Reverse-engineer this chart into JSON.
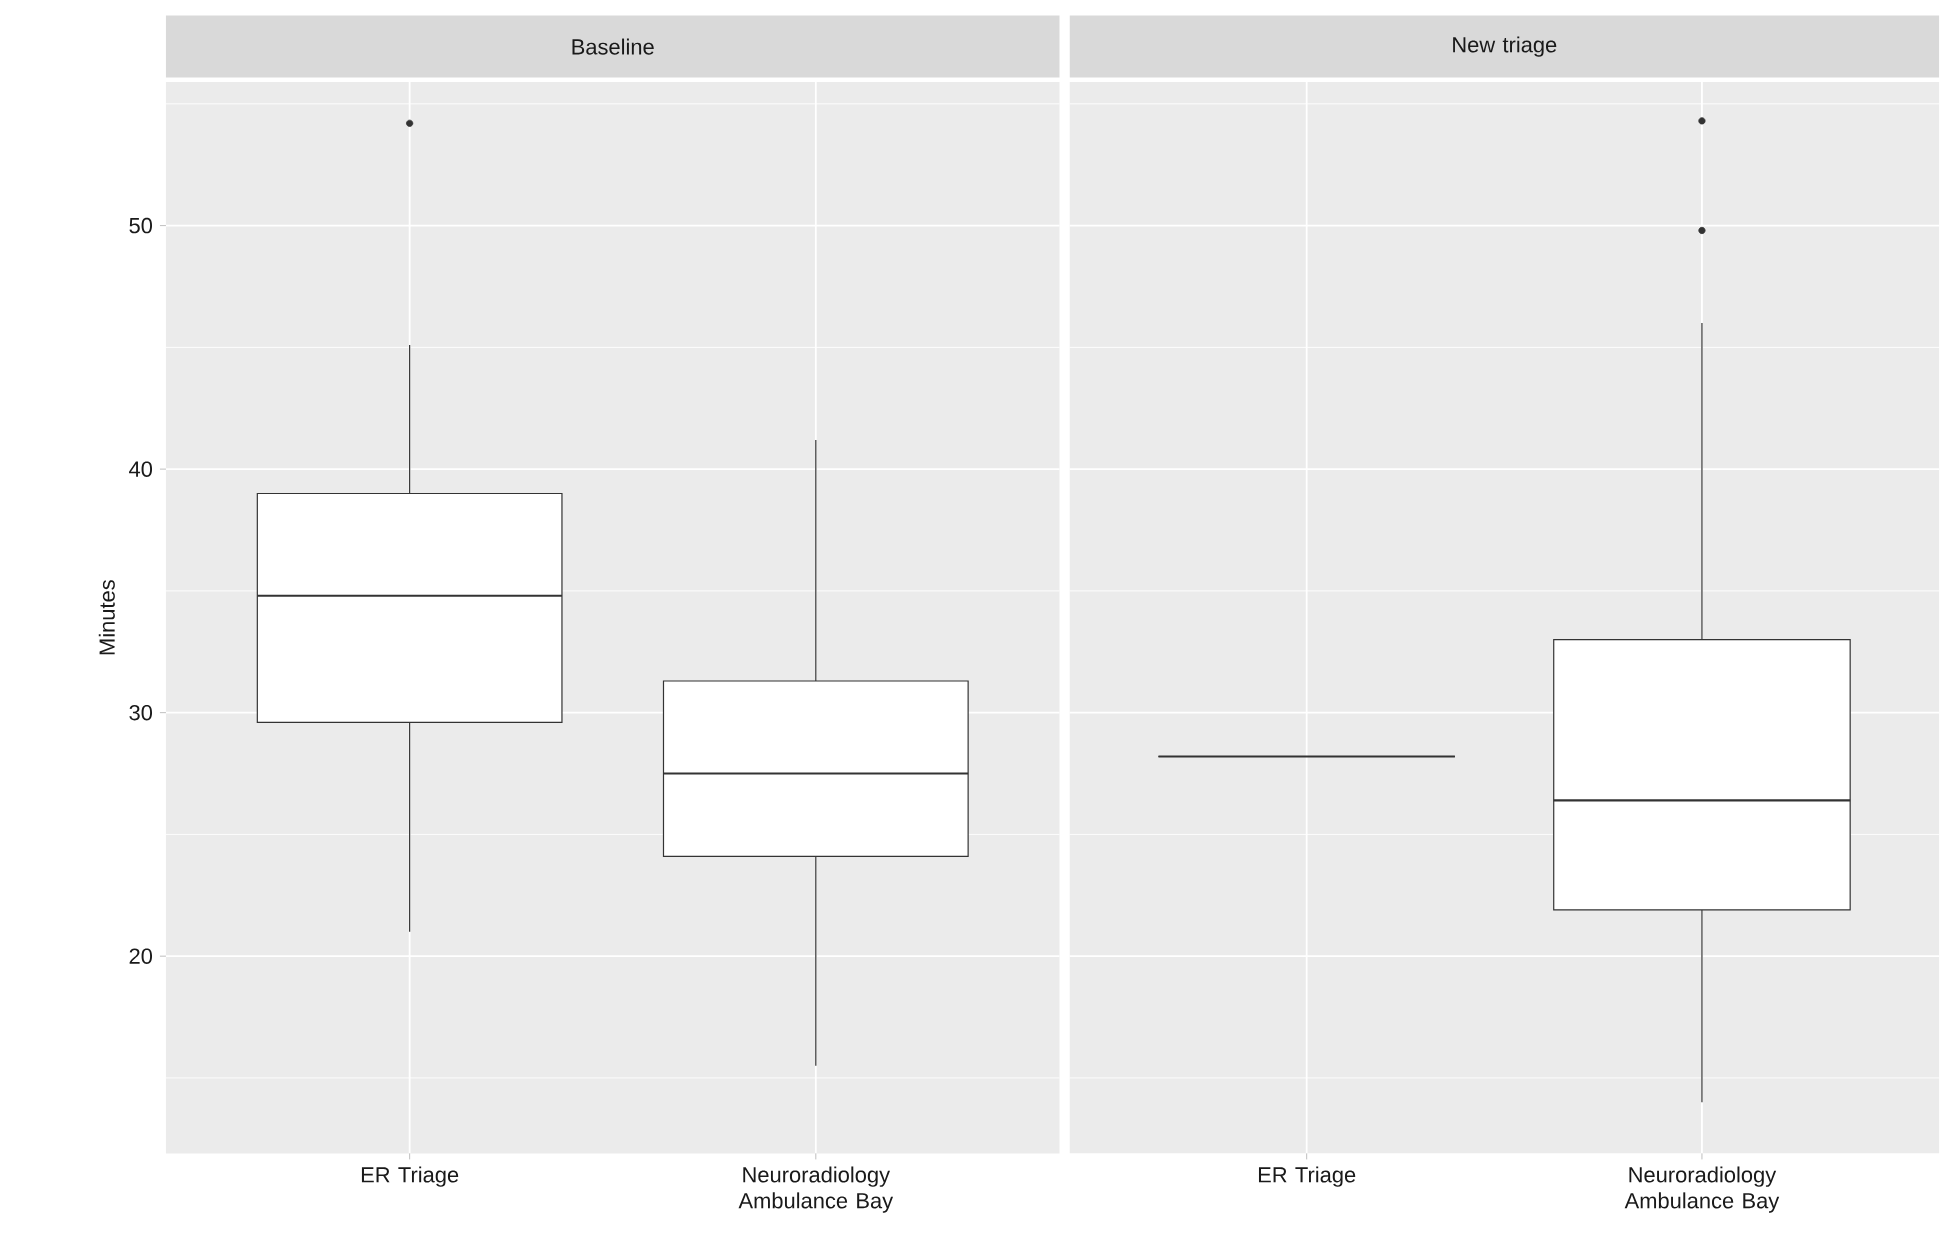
{
  "chart_data": [
    {
      "type": "box",
      "title": "Baseline",
      "ylabel": "Minutes",
      "categories": [
        "ER Triage",
        "Neuroradiology Ambulance Bay"
      ],
      "boxes": [
        {
          "low": 21.0,
          "q1": 29.6,
          "median": 34.8,
          "q3": 39.0,
          "high": 45.1,
          "outliers": [
            54.2
          ]
        },
        {
          "low": 15.5,
          "q1": 24.1,
          "median": 27.5,
          "q3": 31.3,
          "high": 41.2
        }
      ],
      "ylim": [
        11.9,
        55.9
      ],
      "yticks": [
        {
          "value": 15,
          "label": null
        },
        20,
        {
          "value": 25,
          "label": null
        },
        30,
        {
          "value": 35,
          "label": null
        },
        40,
        {
          "value": 45,
          "label": null
        },
        50,
        {
          "value": 55,
          "label": null
        }
      ],
      "grid": true
    },
    {
      "type": "box",
      "title": "New triage",
      "categories": [
        "ER Triage",
        "Neuroradiology Ambulance Bay"
      ],
      "boxes": [
        {
          "low": 28.2,
          "q1": 28.2,
          "median": 28.2,
          "q3": 28.2,
          "high": 28.2
        },
        {
          "low": 14.0,
          "q1": 21.9,
          "median": 26.4,
          "q3": 33.0,
          "high": 46.0,
          "outliers": [
            54.3,
            49.8
          ]
        }
      ],
      "ylim": [
        11.9,
        55.9
      ],
      "yticks": [
        {
          "value": 15,
          "label": null
        },
        20,
        {
          "value": 25,
          "label": null
        },
        30,
        {
          "value": 35,
          "label": null
        },
        40,
        {
          "value": 45,
          "label": null
        },
        50,
        {
          "value": 55,
          "label": null
        }
      ],
      "grid": true,
      "tick_labels": "x"
    }
  ]
}
